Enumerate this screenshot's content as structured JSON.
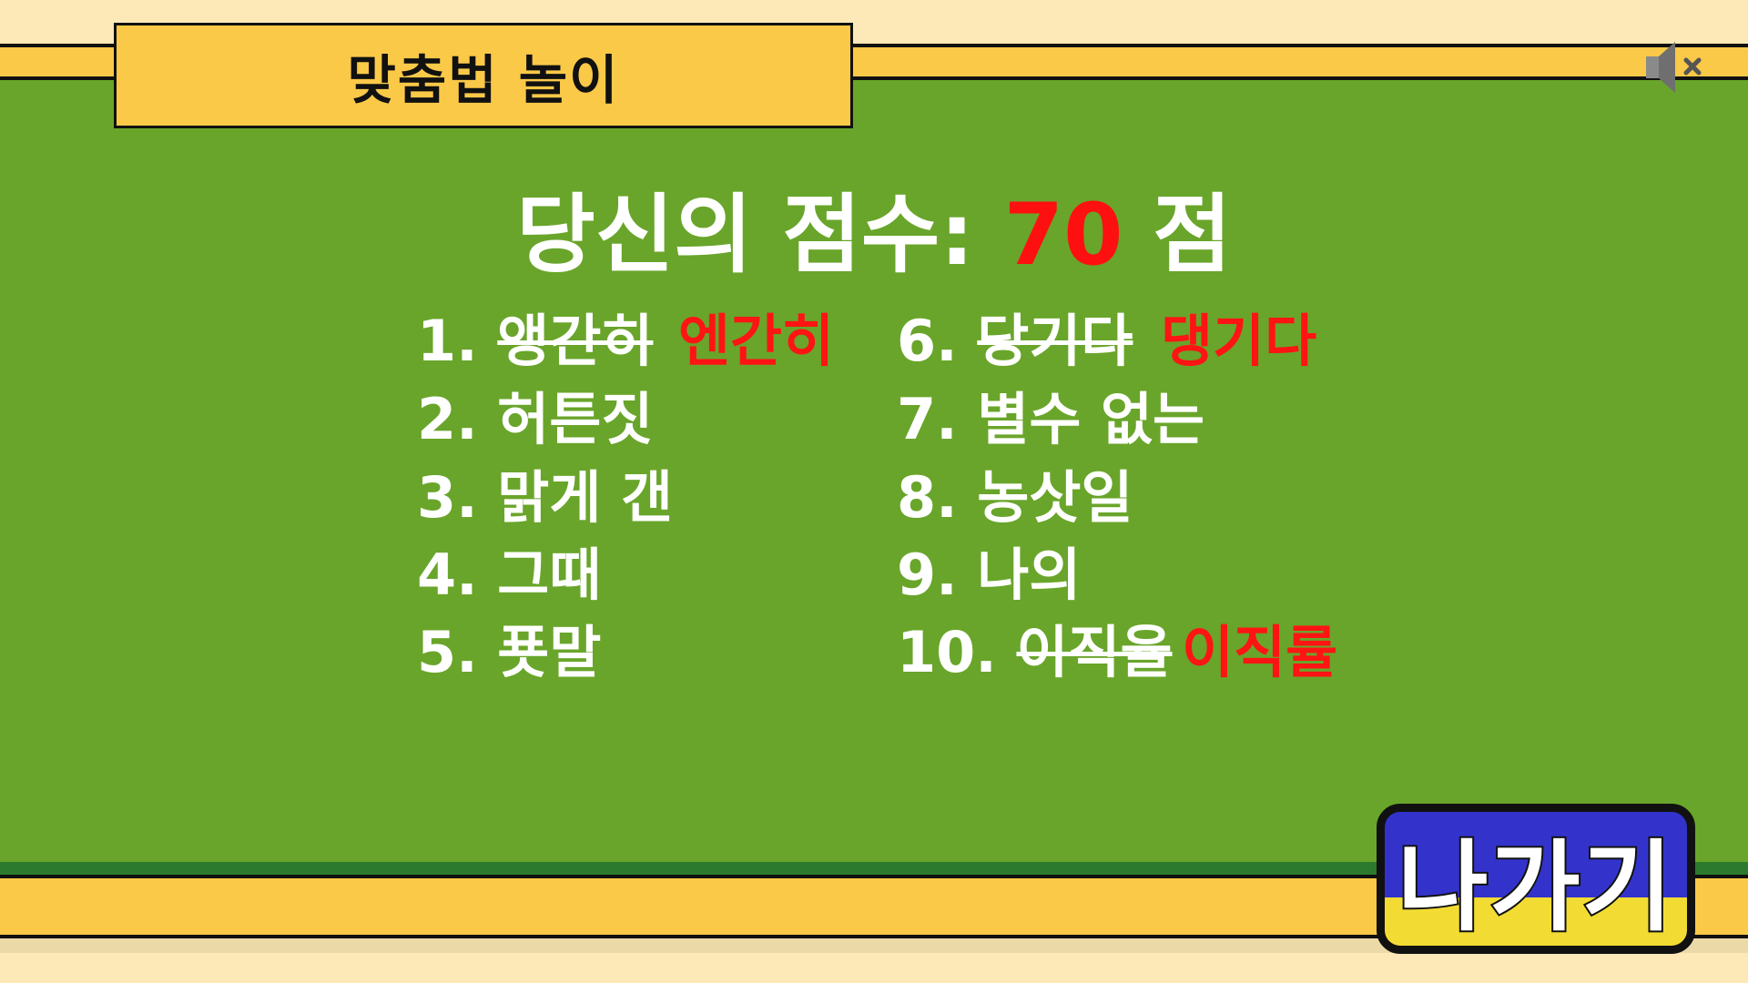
{
  "title": "맞춤법 놀이",
  "score": {
    "prefix": "당신의 점수: ",
    "value": "70",
    "suffix": " 점"
  },
  "answers": [
    {
      "number": "1.",
      "text": "앵간히",
      "wrong": true,
      "correction": "엔간히"
    },
    {
      "number": "2.",
      "text": "허튼짓",
      "wrong": false,
      "correction": ""
    },
    {
      "number": "3.",
      "text": "맑게 갠",
      "wrong": false,
      "correction": ""
    },
    {
      "number": "4.",
      "text": "그때",
      "wrong": false,
      "correction": ""
    },
    {
      "number": "5.",
      "text": "푯말",
      "wrong": false,
      "correction": ""
    },
    {
      "number": "6.",
      "text": "당기다",
      "wrong": true,
      "correction": "댕기다"
    },
    {
      "number": "7.",
      "text": "별수 없는",
      "wrong": false,
      "correction": ""
    },
    {
      "number": "8.",
      "text": "농삿일",
      "wrong": false,
      "correction": ""
    },
    {
      "number": "9.",
      "text": "나의",
      "wrong": false,
      "correction": ""
    },
    {
      "number": "10.",
      "text": "이직율",
      "wrong": true,
      "correction": "이직률"
    }
  ],
  "exit_button": {
    "label": "나가기"
  },
  "icons": {
    "sound": "speaker-muted-icon"
  },
  "colors": {
    "board": "#69a52a",
    "bar": "#fbc948",
    "score_value": "#ff1010",
    "correction": "#ff1414",
    "exit_top": "#3333cc",
    "exit_bottom": "#f2dc33"
  }
}
